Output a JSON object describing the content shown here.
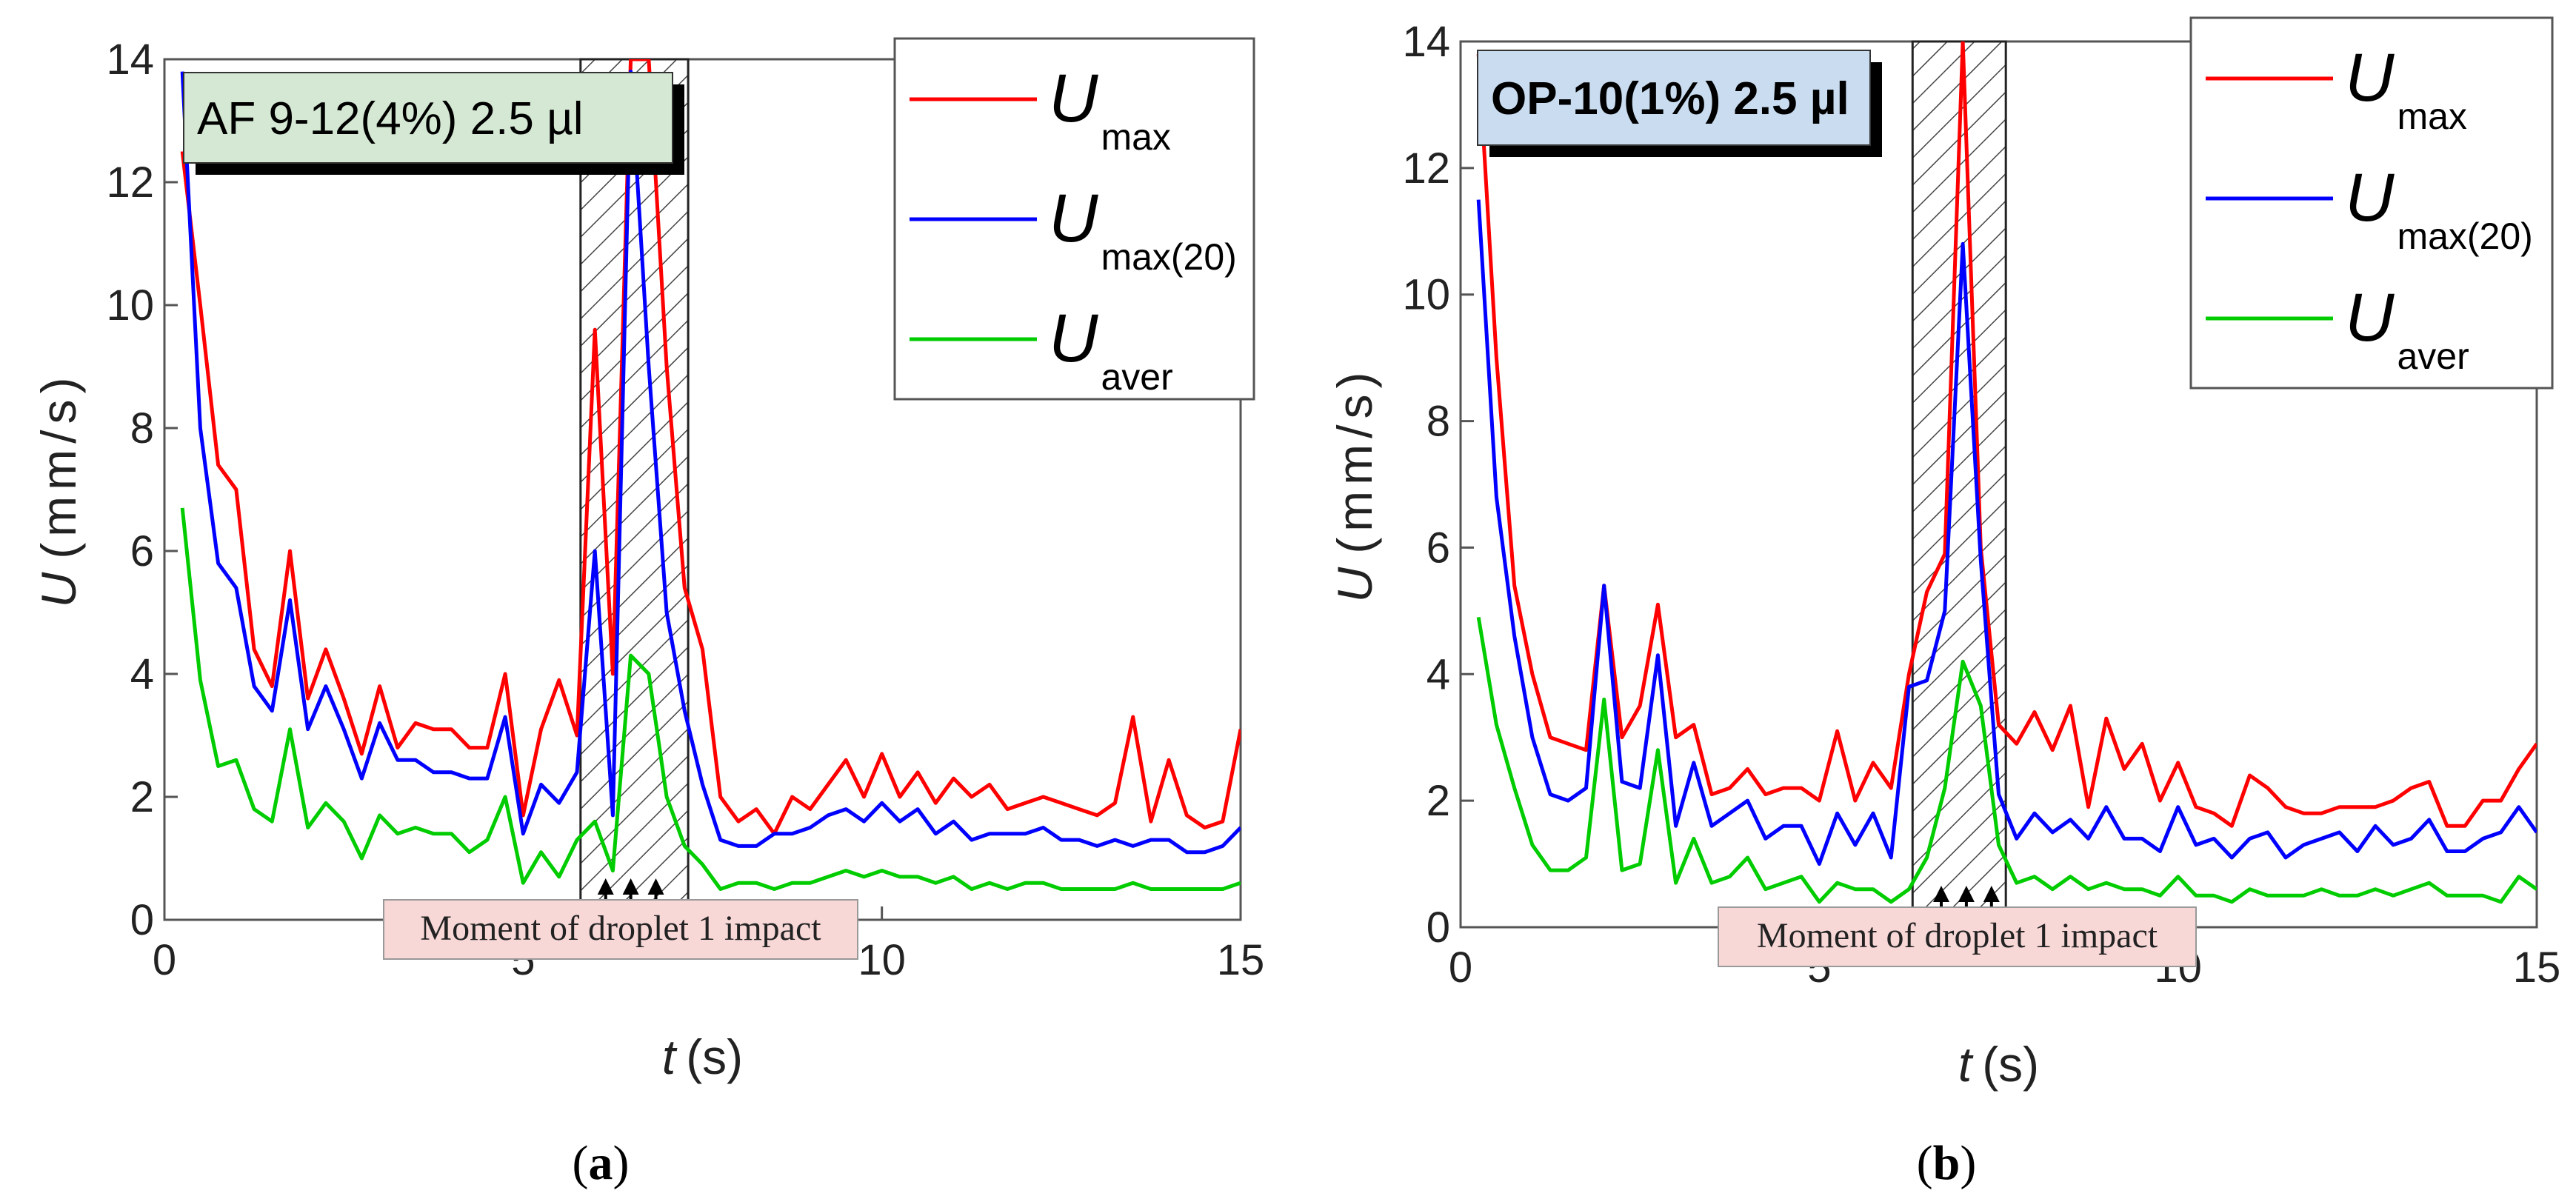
{
  "figure": {
    "panels": [
      {
        "caption_open": "(",
        "caption_letter": "a",
        "caption_close": ")"
      },
      {
        "caption_open": "(",
        "caption_letter": "b",
        "caption_close": ")"
      }
    ]
  },
  "chart_data": [
    {
      "type": "line",
      "panel": "a",
      "title": "AF 9-12(4%) 2.5 µl",
      "xlabel_var": "t",
      "xlabel_unit": "(s)",
      "ylabel_var": "U",
      "ylabel_unit": "(mm/s)",
      "xlim": [
        0,
        15
      ],
      "ylim": [
        0,
        14
      ],
      "xticks": [
        0,
        5,
        10,
        15
      ],
      "yticks": [
        0,
        2,
        4,
        6,
        8,
        10,
        12,
        14
      ],
      "hatched_region": [
        5.8,
        7.3
      ],
      "arrows_t": [
        6.15,
        6.5,
        6.85
      ],
      "annotation": "Moment of droplet 1 impact",
      "series": [
        {
          "name": "U",
          "sub": "max",
          "color": "#ff0000",
          "x": [
            0.25,
            0.5,
            0.75,
            1,
            1.25,
            1.5,
            1.75,
            2,
            2.25,
            2.5,
            2.75,
            3,
            3.25,
            3.5,
            3.75,
            4,
            4.25,
            4.5,
            4.75,
            5,
            5.25,
            5.5,
            5.75,
            6,
            6.25,
            6.5,
            6.75,
            7,
            7.25,
            7.5,
            7.75,
            8,
            8.25,
            8.5,
            8.75,
            9,
            9.25,
            9.5,
            9.75,
            10,
            10.25,
            10.5,
            10.75,
            11,
            11.25,
            11.5,
            11.75,
            12,
            12.25,
            12.5,
            12.75,
            13,
            13.25,
            13.5,
            13.75,
            14,
            14.25,
            14.5,
            14.75,
            15
          ],
          "y": [
            12.5,
            10,
            7.4,
            7.0,
            4.4,
            3.8,
            6.0,
            3.6,
            4.4,
            3.6,
            2.7,
            3.8,
            2.8,
            3.2,
            3.1,
            3.1,
            2.8,
            2.8,
            4.0,
            1.7,
            3.1,
            3.9,
            3.0,
            9.6,
            4.0,
            14,
            14,
            9.0,
            5.4,
            4.4,
            2.0,
            1.6,
            1.8,
            1.4,
            2.0,
            1.8,
            2.2,
            2.6,
            2.0,
            2.7,
            2.0,
            2.4,
            1.9,
            2.3,
            2.0,
            2.2,
            1.8,
            1.9,
            2.0,
            1.9,
            1.8,
            1.7,
            1.9,
            3.3,
            1.6,
            2.6,
            1.7,
            1.5,
            1.6,
            3.1
          ]
        },
        {
          "name": "U",
          "sub": "max(20)",
          "color": "#0000ff",
          "x": [
            0.25,
            0.5,
            0.75,
            1,
            1.25,
            1.5,
            1.75,
            2,
            2.25,
            2.5,
            2.75,
            3,
            3.25,
            3.5,
            3.75,
            4,
            4.25,
            4.5,
            4.75,
            5,
            5.25,
            5.5,
            5.75,
            6,
            6.25,
            6.5,
            6.75,
            7,
            7.25,
            7.5,
            7.75,
            8,
            8.25,
            8.5,
            8.75,
            9,
            9.25,
            9.5,
            9.75,
            10,
            10.25,
            10.5,
            10.75,
            11,
            11.25,
            11.5,
            11.75,
            12,
            12.25,
            12.5,
            12.75,
            13,
            13.25,
            13.5,
            13.75,
            14,
            14.25,
            14.5,
            14.75,
            15
          ],
          "y": [
            13.8,
            8.0,
            5.8,
            5.4,
            3.8,
            3.4,
            5.2,
            3.1,
            3.8,
            3.1,
            2.3,
            3.2,
            2.6,
            2.6,
            2.4,
            2.4,
            2.3,
            2.3,
            3.3,
            1.4,
            2.2,
            1.9,
            2.4,
            6.0,
            1.7,
            13.8,
            9.0,
            5.0,
            3.4,
            2.2,
            1.3,
            1.2,
            1.2,
            1.4,
            1.4,
            1.5,
            1.7,
            1.8,
            1.6,
            1.9,
            1.6,
            1.8,
            1.4,
            1.6,
            1.3,
            1.4,
            1.4,
            1.4,
            1.5,
            1.3,
            1.3,
            1.2,
            1.3,
            1.2,
            1.3,
            1.3,
            1.1,
            1.1,
            1.2,
            1.5
          ]
        },
        {
          "name": "U",
          "sub": "aver",
          "color": "#00cc00",
          "x": [
            0.25,
            0.5,
            0.75,
            1,
            1.25,
            1.5,
            1.75,
            2,
            2.25,
            2.5,
            2.75,
            3,
            3.25,
            3.5,
            3.75,
            4,
            4.25,
            4.5,
            4.75,
            5,
            5.25,
            5.5,
            5.75,
            6,
            6.25,
            6.5,
            6.75,
            7,
            7.25,
            7.5,
            7.75,
            8,
            8.25,
            8.5,
            8.75,
            9,
            9.25,
            9.5,
            9.75,
            10,
            10.25,
            10.5,
            10.75,
            11,
            11.25,
            11.5,
            11.75,
            12,
            12.25,
            12.5,
            12.75,
            13,
            13.25,
            13.5,
            13.75,
            14,
            14.25,
            14.5,
            14.75,
            15
          ],
          "y": [
            6.7,
            3.9,
            2.5,
            2.6,
            1.8,
            1.6,
            3.1,
            1.5,
            1.9,
            1.6,
            1.0,
            1.7,
            1.4,
            1.5,
            1.4,
            1.4,
            1.1,
            1.3,
            2.0,
            0.6,
            1.1,
            0.7,
            1.3,
            1.6,
            0.8,
            4.3,
            4.0,
            2.0,
            1.2,
            0.9,
            0.5,
            0.6,
            0.6,
            0.5,
            0.6,
            0.6,
            0.7,
            0.8,
            0.7,
            0.8,
            0.7,
            0.7,
            0.6,
            0.7,
            0.5,
            0.6,
            0.5,
            0.6,
            0.6,
            0.5,
            0.5,
            0.5,
            0.5,
            0.6,
            0.5,
            0.5,
            0.5,
            0.5,
            0.5,
            0.6
          ]
        }
      ]
    },
    {
      "type": "line",
      "panel": "b",
      "title": "OP-10(1%) 2.5 µl",
      "xlabel_var": "t",
      "xlabel_unit": "(s)",
      "ylabel_var": "U",
      "ylabel_unit": "(mm/s)",
      "xlim": [
        0,
        15
      ],
      "ylim": [
        0,
        14
      ],
      "xticks": [
        0,
        5,
        10,
        15
      ],
      "yticks": [
        0,
        2,
        4,
        6,
        8,
        10,
        12,
        14
      ],
      "hatched_region": [
        6.3,
        7.6
      ],
      "arrows_t": [
        6.7,
        7.05,
        7.4
      ],
      "annotation": "Moment of droplet 1 impact",
      "series": [
        {
          "name": "U",
          "sub": "max",
          "color": "#ff0000",
          "x": [
            0.25,
            0.5,
            0.75,
            1,
            1.25,
            1.5,
            1.75,
            2,
            2.25,
            2.5,
            2.75,
            3,
            3.25,
            3.5,
            3.75,
            4,
            4.25,
            4.5,
            4.75,
            5,
            5.25,
            5.5,
            5.75,
            6,
            6.25,
            6.5,
            6.75,
            7,
            7.25,
            7.5,
            7.75,
            8,
            8.25,
            8.5,
            8.75,
            9,
            9.25,
            9.5,
            9.75,
            10,
            10.25,
            10.5,
            10.75,
            11,
            11.25,
            11.5,
            11.75,
            12,
            12.25,
            12.5,
            12.75,
            13,
            13.25,
            13.5,
            13.75,
            14,
            14.25,
            14.5,
            14.75,
            15
          ],
          "y": [
            13.8,
            9.0,
            5.4,
            4.0,
            3.0,
            2.9,
            2.8,
            5.4,
            3.0,
            3.5,
            5.1,
            3.0,
            3.2,
            2.1,
            2.2,
            2.5,
            2.1,
            2.2,
            2.2,
            2.0,
            3.1,
            2.0,
            2.6,
            2.2,
            4.0,
            5.3,
            5.9,
            14,
            6.0,
            3.2,
            2.9,
            3.4,
            2.8,
            3.5,
            1.9,
            3.3,
            2.5,
            2.9,
            2.0,
            2.6,
            1.9,
            1.8,
            1.6,
            2.4,
            2.2,
            1.9,
            1.8,
            1.8,
            1.9,
            1.9,
            1.9,
            2.0,
            2.2,
            2.3,
            1.6,
            1.6,
            2.0,
            2.0,
            2.5,
            2.9
          ]
        },
        {
          "name": "U",
          "sub": "max(20)",
          "color": "#0000ff",
          "x": [
            0.25,
            0.5,
            0.75,
            1,
            1.25,
            1.5,
            1.75,
            2,
            2.25,
            2.5,
            2.75,
            3,
            3.25,
            3.5,
            3.75,
            4,
            4.25,
            4.5,
            4.75,
            5,
            5.25,
            5.5,
            5.75,
            6,
            6.25,
            6.5,
            6.75,
            7,
            7.25,
            7.5,
            7.75,
            8,
            8.25,
            8.5,
            8.75,
            9,
            9.25,
            9.5,
            9.75,
            10,
            10.25,
            10.5,
            10.75,
            11,
            11.25,
            11.5,
            11.75,
            12,
            12.25,
            12.5,
            12.75,
            13,
            13.25,
            13.5,
            13.75,
            14,
            14.25,
            14.5,
            14.75,
            15
          ],
          "y": [
            11.5,
            6.8,
            4.6,
            3.0,
            2.1,
            2.0,
            2.2,
            5.4,
            2.3,
            2.2,
            4.3,
            1.6,
            2.6,
            1.6,
            1.8,
            2.0,
            1.4,
            1.6,
            1.6,
            1.0,
            1.8,
            1.3,
            1.8,
            1.1,
            3.8,
            3.9,
            5.0,
            10.8,
            5.8,
            2.1,
            1.4,
            1.8,
            1.5,
            1.7,
            1.4,
            1.9,
            1.4,
            1.4,
            1.2,
            1.9,
            1.3,
            1.4,
            1.1,
            1.4,
            1.5,
            1.1,
            1.3,
            1.4,
            1.5,
            1.2,
            1.6,
            1.3,
            1.4,
            1.7,
            1.2,
            1.2,
            1.4,
            1.5,
            1.9,
            1.5
          ]
        },
        {
          "name": "U",
          "sub": "aver",
          "color": "#00cc00",
          "x": [
            0.25,
            0.5,
            0.75,
            1,
            1.25,
            1.5,
            1.75,
            2,
            2.25,
            2.5,
            2.75,
            3,
            3.25,
            3.5,
            3.75,
            4,
            4.25,
            4.5,
            4.75,
            5,
            5.25,
            5.5,
            5.75,
            6,
            6.25,
            6.5,
            6.75,
            7,
            7.25,
            7.5,
            7.75,
            8,
            8.25,
            8.5,
            8.75,
            9,
            9.25,
            9.5,
            9.75,
            10,
            10.25,
            10.5,
            10.75,
            11,
            11.25,
            11.5,
            11.75,
            12,
            12.25,
            12.5,
            12.75,
            13,
            13.25,
            13.5,
            13.75,
            14,
            14.25,
            14.5,
            14.75,
            15
          ],
          "y": [
            4.9,
            3.2,
            2.2,
            1.3,
            0.9,
            0.9,
            1.1,
            3.6,
            0.9,
            1.0,
            2.8,
            0.7,
            1.4,
            0.7,
            0.8,
            1.1,
            0.6,
            0.7,
            0.8,
            0.4,
            0.7,
            0.6,
            0.6,
            0.4,
            0.6,
            1.1,
            2.2,
            4.2,
            3.5,
            1.3,
            0.7,
            0.8,
            0.6,
            0.8,
            0.6,
            0.7,
            0.6,
            0.6,
            0.5,
            0.8,
            0.5,
            0.5,
            0.4,
            0.6,
            0.5,
            0.5,
            0.5,
            0.6,
            0.5,
            0.5,
            0.6,
            0.5,
            0.6,
            0.7,
            0.5,
            0.5,
            0.5,
            0.4,
            0.8,
            0.6
          ]
        }
      ]
    }
  ]
}
